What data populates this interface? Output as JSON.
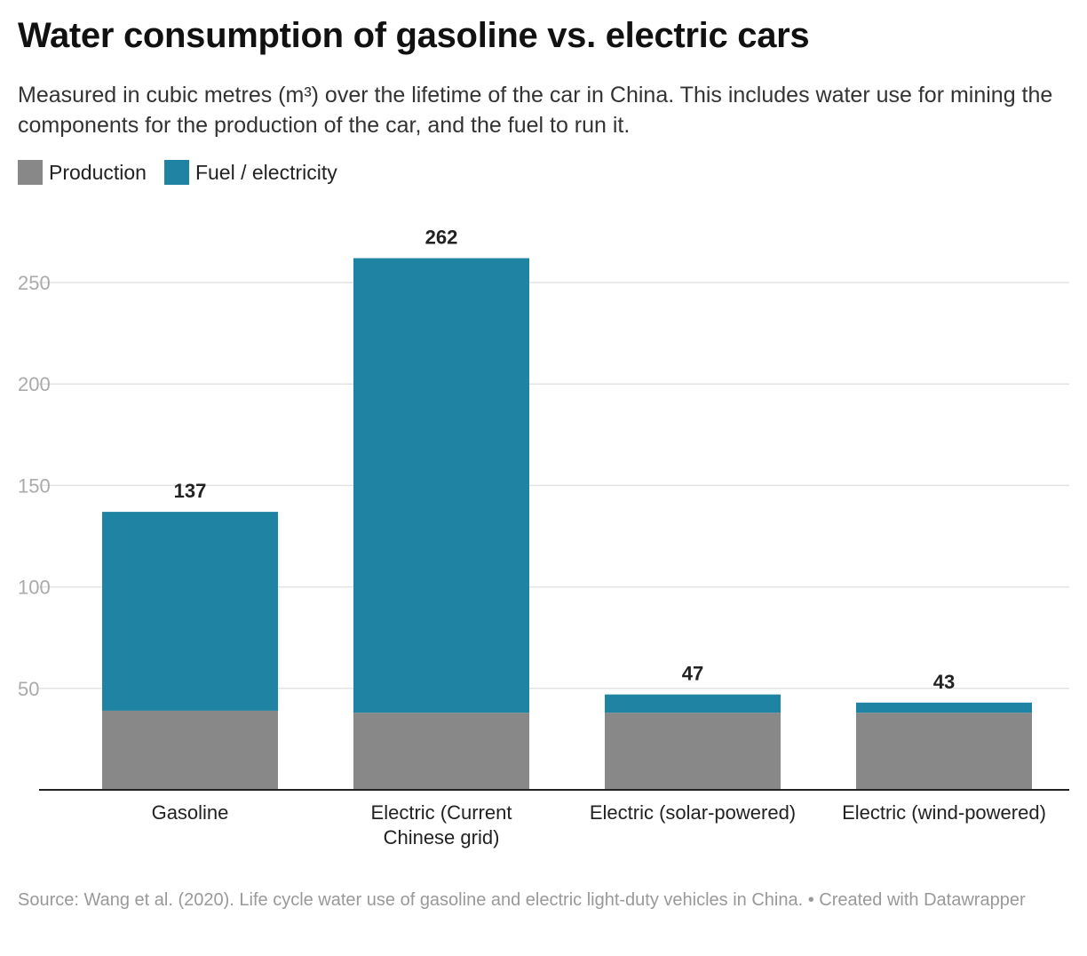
{
  "title": "Water consumption of gasoline vs. electric cars",
  "subtitle": "Measured in cubic metres (m³) over the lifetime of the car in China. This includes water use for mining the components for the production of the car, and the fuel to run it.",
  "source": "Source: Wang et al. (2020). Life cycle water use of gasoline and electric light-duty vehicles in China. • Created with Datawrapper",
  "chart_data": {
    "type": "bar",
    "stacked": true,
    "title": "Water consumption of gasoline vs. electric cars",
    "categories": [
      "Gasoline",
      "Electric (Current Chinese grid)",
      "Electric (solar-powered)",
      "Electric (wind-powered)"
    ],
    "series": [
      {
        "name": "Production",
        "color": "#888888",
        "values": [
          39,
          38,
          38,
          38
        ]
      },
      {
        "name": "Fuel / electricity",
        "color": "#1f83a3",
        "values": [
          98,
          224,
          9,
          5
        ]
      }
    ],
    "totals": [
      137,
      262,
      47,
      43
    ],
    "yticks": [
      50,
      100,
      150,
      200,
      250
    ],
    "ylim": [
      0,
      275
    ],
    "grid": true,
    "legend": "top-left",
    "xlabel": "",
    "ylabel": ""
  }
}
